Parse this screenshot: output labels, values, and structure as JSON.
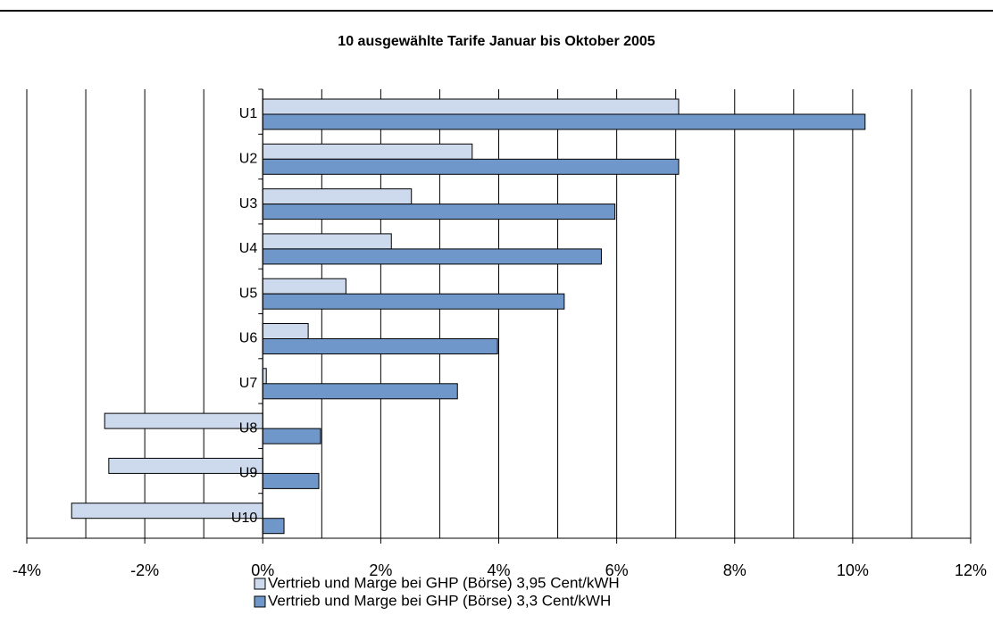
{
  "chart_data": {
    "type": "hbar",
    "title": "10 ausgewählte Tarife Januar bis Oktober 2005",
    "categories": [
      "U1",
      "U2",
      "U3",
      "U4",
      "U5",
      "U6",
      "U7",
      "U8",
      "U9",
      "U10"
    ],
    "series": [
      {
        "name": "Vertrieb und Marge bei GHP (Börse) 3,95 Cent/kWH",
        "color": "#cdd9ec",
        "values": [
          7.05,
          3.55,
          2.52,
          2.18,
          1.41,
          0.77,
          0.06,
          -2.68,
          -2.61,
          -3.24
        ]
      },
      {
        "name": "Vertrieb und Marge bei GHP (Börse)  3,3 Cent/kWH",
        "color": "#6f97c9",
        "values": [
          10.21,
          7.05,
          5.97,
          5.74,
          5.11,
          3.98,
          3.3,
          0.98,
          0.95,
          0.36
        ]
      }
    ],
    "xlim": [
      -4,
      12
    ],
    "xticks": [
      {
        "value": -4,
        "label": "-4%"
      },
      {
        "value": -2,
        "label": "-2%"
      },
      {
        "value": 0,
        "label": "0%"
      },
      {
        "value": 2,
        "label": "2%"
      },
      {
        "value": 4,
        "label": "4%"
      },
      {
        "value": 6,
        "label": "6%"
      },
      {
        "value": 8,
        "label": "8%"
      },
      {
        "value": 10,
        "label": "10%"
      },
      {
        "value": 12,
        "label": "12%"
      }
    ],
    "xgrid": [
      -4,
      -3,
      -2,
      -1,
      0,
      1,
      2,
      3,
      4,
      5,
      6,
      7,
      8,
      9,
      10,
      11,
      12
    ],
    "grid": true,
    "legend": "bottom"
  }
}
